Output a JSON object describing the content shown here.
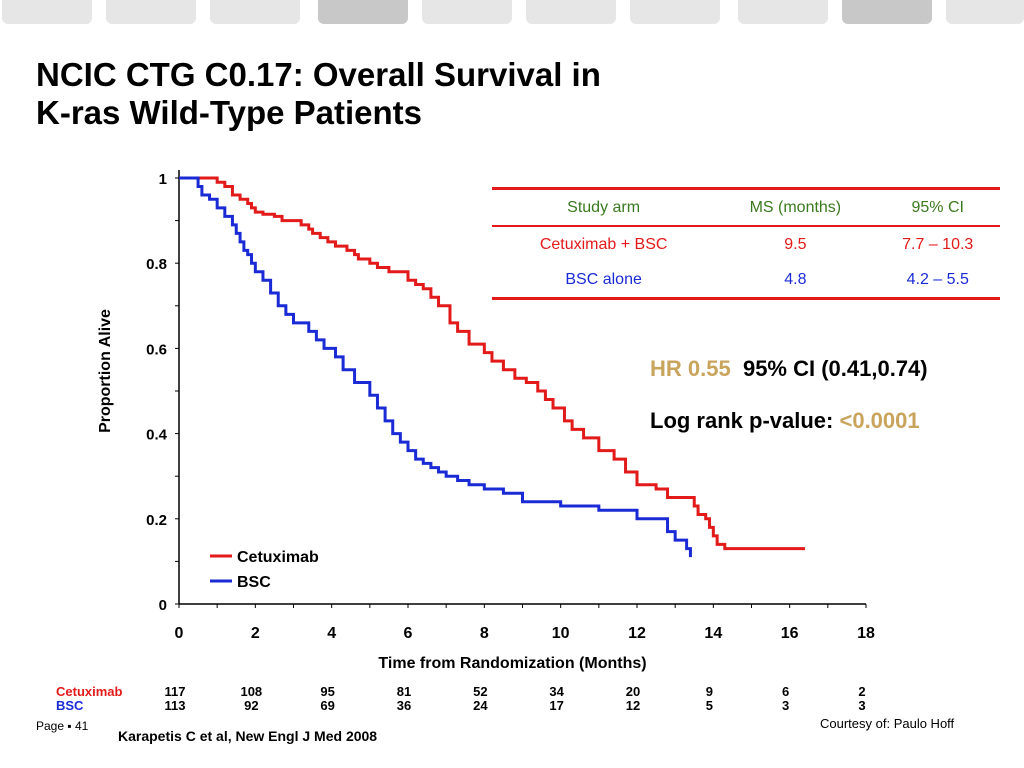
{
  "slide": {
    "title_line1": "NCIC CTG C0.17: Overall Survival in",
    "title_line2": "K-ras Wild-Type Patients",
    "page_label": "Page ▪ 41",
    "citation": "Karapetis C et al, New Engl J Med 2008",
    "courtesy": "Courtesy of: Paulo Hoff"
  },
  "colors": {
    "cetuximab": "#e21a1a",
    "bsc": "#1a2bd6",
    "accent": "#c9a45c",
    "header_green": "#3a7a1e",
    "tab_gray": "#e6e6e6"
  },
  "table": {
    "headers": [
      "Study arm",
      "MS (months)",
      "95% CI"
    ],
    "rows": [
      [
        "Cetuximab + BSC",
        "9.5",
        "7.7 – 10.3"
      ],
      [
        "BSC alone",
        "4.8",
        "4.2 – 5.5"
      ]
    ]
  },
  "stats": {
    "hr_label": "HR 0.55",
    "hr_ci": "95% CI  (0.41,0.74)",
    "logrank_label": "Log rank p-value: ",
    "logrank_value": "<0.0001"
  },
  "risk_table": {
    "times": [
      0,
      2,
      4,
      6,
      8,
      10,
      12,
      14,
      16,
      18
    ],
    "cetuximab_label": "Cetuximab",
    "cetuximab": [
      "117",
      "108",
      "95",
      "81",
      "52",
      "34",
      "20",
      "9",
      "6",
      "2"
    ],
    "bsc_label": "BSC",
    "bsc": [
      "113",
      "92",
      "69",
      "36",
      "24",
      "17",
      "12",
      "5",
      "3",
      "3"
    ]
  },
  "chart_data": {
    "type": "line",
    "step": true,
    "xlabel": "Time from Randomization (Months)",
    "ylabel": "Proportion Alive",
    "xlim": [
      0,
      18
    ],
    "ylim": [
      0,
      1
    ],
    "xticks": [
      0,
      2,
      4,
      6,
      8,
      10,
      12,
      14,
      16,
      18
    ],
    "yticks": [
      0,
      0.2,
      0.4,
      0.6,
      0.8,
      1
    ],
    "ytick_labels": [
      "0",
      "0.2",
      "0.4",
      "0.6",
      "0.8",
      "1"
    ],
    "grid": false,
    "legend_position": "bottom-left",
    "series": [
      {
        "name": "Cetuximab",
        "color": "#e21a1a",
        "x": [
          0,
          0.3,
          1,
          1.2,
          1.4,
          1.6,
          1.8,
          1.9,
          2.0,
          2.2,
          2.5,
          2.7,
          3.2,
          3.4,
          3.5,
          3.7,
          3.9,
          4.1,
          4.4,
          4.6,
          4.7,
          5.0,
          5.2,
          5.5,
          6.0,
          6.2,
          6.4,
          6.6,
          6.8,
          7.1,
          7.3,
          7.6,
          8.0,
          8.2,
          8.5,
          8.8,
          9.1,
          9.4,
          9.6,
          9.8,
          10.1,
          10.3,
          10.6,
          11.0,
          11.4,
          11.7,
          12.0,
          12.5,
          12.8,
          13.5,
          13.6,
          13.8,
          13.9,
          14.0,
          14.1,
          14.3,
          15.0,
          16.4
        ],
        "y": [
          1,
          1,
          0.99,
          0.98,
          0.96,
          0.95,
          0.94,
          0.93,
          0.92,
          0.915,
          0.91,
          0.9,
          0.89,
          0.88,
          0.87,
          0.86,
          0.85,
          0.84,
          0.83,
          0.82,
          0.81,
          0.8,
          0.79,
          0.78,
          0.76,
          0.75,
          0.74,
          0.72,
          0.7,
          0.66,
          0.64,
          0.61,
          0.59,
          0.57,
          0.55,
          0.53,
          0.52,
          0.5,
          0.48,
          0.46,
          0.43,
          0.41,
          0.39,
          0.36,
          0.34,
          0.31,
          0.28,
          0.27,
          0.25,
          0.23,
          0.21,
          0.2,
          0.18,
          0.16,
          0.14,
          0.13,
          0.13,
          0.13
        ]
      },
      {
        "name": "BSC",
        "color": "#1a2bd6",
        "x": [
          0,
          0.5,
          0.6,
          0.8,
          1.0,
          1.2,
          1.4,
          1.5,
          1.6,
          1.7,
          1.8,
          1.9,
          2.0,
          2.2,
          2.4,
          2.6,
          2.8,
          3.0,
          3.4,
          3.6,
          3.8,
          4.1,
          4.3,
          4.6,
          5.0,
          5.2,
          5.4,
          5.6,
          5.8,
          6.0,
          6.2,
          6.4,
          6.6,
          6.8,
          7.0,
          7.3,
          7.6,
          8.0,
          8.5,
          9.0,
          10.0,
          11.0,
          12.0,
          12.8,
          13.0,
          13.3,
          13.4
        ],
        "y": [
          1,
          0.98,
          0.96,
          0.95,
          0.93,
          0.91,
          0.89,
          0.87,
          0.85,
          0.83,
          0.82,
          0.8,
          0.78,
          0.76,
          0.73,
          0.7,
          0.68,
          0.66,
          0.64,
          0.62,
          0.6,
          0.58,
          0.55,
          0.52,
          0.49,
          0.46,
          0.43,
          0.4,
          0.38,
          0.36,
          0.34,
          0.33,
          0.32,
          0.31,
          0.3,
          0.29,
          0.28,
          0.27,
          0.26,
          0.24,
          0.23,
          0.22,
          0.2,
          0.17,
          0.15,
          0.13,
          0.11
        ]
      }
    ]
  }
}
